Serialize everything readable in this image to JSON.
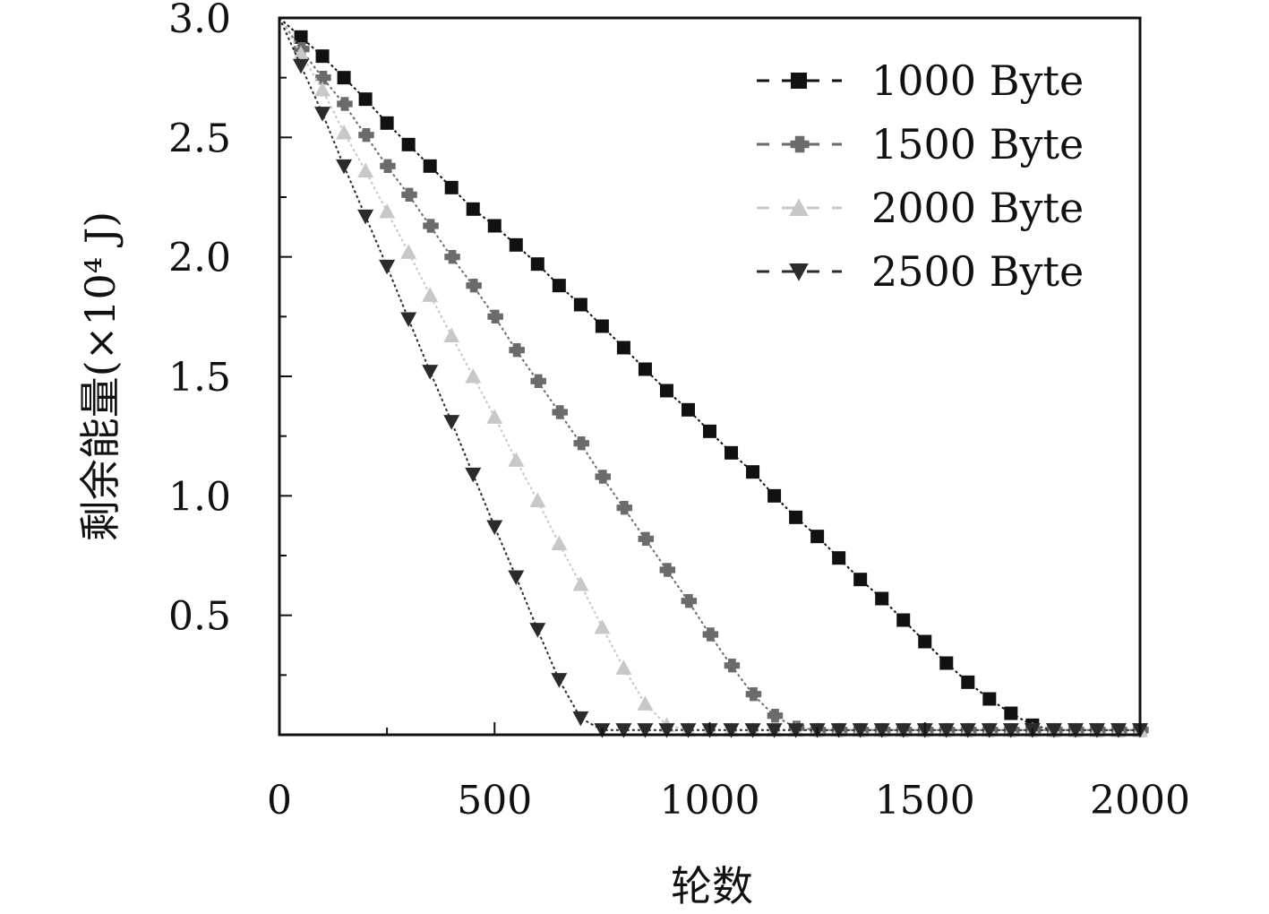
{
  "chart_data": {
    "type": "line",
    "xlabel": "轮数",
    "ylabel": "剩余能量(×10⁴ J)",
    "xlim": [
      0,
      2000
    ],
    "ylim": [
      0,
      3.0
    ],
    "xticks": [
      "0",
      "500",
      "1000",
      "1500",
      "2000"
    ],
    "yticks": [
      "0.5",
      "1.0",
      "1.5",
      "2.0",
      "2.5",
      "3.0"
    ],
    "grid": false,
    "legend_position": "top-right",
    "x": [
      0,
      50,
      100,
      150,
      200,
      250,
      300,
      350,
      400,
      450,
      500,
      550,
      600,
      650,
      700,
      750,
      800,
      850,
      900,
      950,
      1000,
      1050,
      1100,
      1150,
      1200,
      1250,
      1300,
      1350,
      1400,
      1450,
      1500,
      1550,
      1600,
      1650,
      1700,
      1750,
      1800,
      1850,
      1900,
      1950,
      2000
    ],
    "series": [
      {
        "name": "1000 Byte",
        "marker": "square",
        "color": "#111111",
        "values": [
          3.0,
          2.92,
          2.84,
          2.75,
          2.66,
          2.56,
          2.47,
          2.38,
          2.29,
          2.2,
          2.13,
          2.05,
          1.97,
          1.88,
          1.8,
          1.71,
          1.62,
          1.53,
          1.44,
          1.36,
          1.27,
          1.18,
          1.1,
          1.0,
          0.91,
          0.83,
          0.74,
          0.65,
          0.57,
          0.48,
          0.39,
          0.3,
          0.22,
          0.15,
          0.09,
          0.04,
          0.02,
          0.02,
          0.02,
          0.02,
          0.02
        ]
      },
      {
        "name": "1500 Byte",
        "marker": "diamond",
        "color": "#6b6b6b",
        "values": [
          3.0,
          2.87,
          2.75,
          2.64,
          2.51,
          2.38,
          2.26,
          2.13,
          2.0,
          1.88,
          1.75,
          1.61,
          1.48,
          1.35,
          1.22,
          1.08,
          0.95,
          0.82,
          0.69,
          0.56,
          0.42,
          0.29,
          0.17,
          0.08,
          0.03,
          0.02,
          0.02,
          0.02,
          0.02,
          0.02,
          0.02,
          0.02,
          0.02,
          0.02,
          0.02,
          0.02,
          0.02,
          0.02,
          0.02,
          0.02,
          0.02
        ]
      },
      {
        "name": "2000 Byte",
        "marker": "triangle-up",
        "color": "#c8c8c8",
        "values": [
          3.0,
          2.85,
          2.7,
          2.52,
          2.36,
          2.19,
          2.02,
          1.84,
          1.67,
          1.5,
          1.33,
          1.15,
          0.98,
          0.8,
          0.63,
          0.45,
          0.28,
          0.13,
          0.04,
          0.02,
          0.02,
          0.02,
          0.02,
          0.02,
          0.02,
          0.02,
          0.02,
          0.02,
          0.02,
          0.02,
          0.02,
          0.02,
          0.02,
          0.02,
          0.02,
          0.02,
          0.02,
          0.02,
          0.02,
          0.02,
          0.02
        ]
      },
      {
        "name": "2500 Byte",
        "marker": "triangle-down",
        "color": "#2b2b2b",
        "values": [
          3.0,
          2.8,
          2.6,
          2.38,
          2.17,
          1.96,
          1.74,
          1.52,
          1.31,
          1.09,
          0.87,
          0.66,
          0.44,
          0.23,
          0.07,
          0.02,
          0.02,
          0.02,
          0.02,
          0.02,
          0.02,
          0.02,
          0.02,
          0.02,
          0.02,
          0.02,
          0.02,
          0.02,
          0.02,
          0.02,
          0.02,
          0.02,
          0.02,
          0.02,
          0.02,
          0.02,
          0.02,
          0.02,
          0.02,
          0.02,
          0.02
        ]
      }
    ]
  }
}
